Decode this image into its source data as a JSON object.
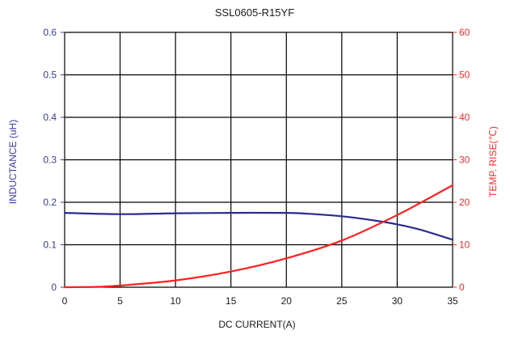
{
  "chart_data": {
    "type": "line",
    "title": "SSL0605-R15YF",
    "xlabel": "DC CURRENT(A)",
    "ylabel_left": "INDUCTANCE (uH)",
    "ylabel_right": "TEMP. RISE(℃)",
    "xlim": [
      0,
      35
    ],
    "ylim_left": [
      0,
      0.6
    ],
    "ylim_right": [
      0,
      60
    ],
    "x_ticks": [
      "0",
      "5",
      "10",
      "15",
      "20",
      "25",
      "30",
      "35"
    ],
    "y_left_ticks": [
      "0",
      "0.1",
      "0.2",
      "0.3",
      "0.4",
      "0.5",
      "0.6"
    ],
    "y_right_ticks": [
      "0",
      "10",
      "20",
      "30",
      "40",
      "50",
      "60"
    ],
    "grid": true,
    "series": [
      {
        "name": "Inductance",
        "axis": "left",
        "color": "#2b2b8f",
        "x": [
          0,
          5,
          10,
          15,
          20,
          22,
          25,
          28,
          30,
          32,
          35
        ],
        "y": [
          0.175,
          0.172,
          0.174,
          0.175,
          0.175,
          0.173,
          0.167,
          0.157,
          0.148,
          0.136,
          0.112
        ]
      },
      {
        "name": "Temp. rise",
        "axis": "right",
        "color": "#ff2020",
        "x": [
          0,
          3,
          5,
          10,
          15,
          20,
          25,
          30,
          35
        ],
        "y": [
          0,
          0.1,
          0.4,
          1.6,
          3.7,
          6.8,
          11,
          17,
          24
        ]
      }
    ]
  }
}
